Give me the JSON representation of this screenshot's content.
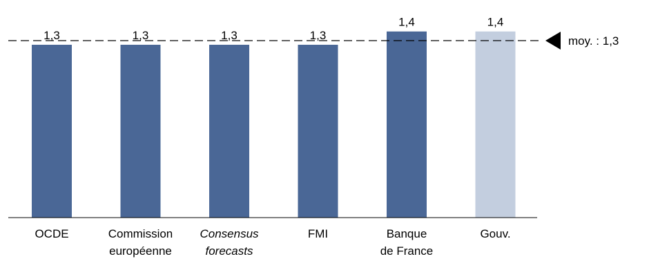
{
  "chart_data": {
    "type": "bar",
    "title": "",
    "xlabel": "",
    "ylabel": "",
    "ylim": [
      0,
      1.5
    ],
    "categories": [
      {
        "lines": [
          "OCDE"
        ],
        "italic": false
      },
      {
        "lines": [
          "Commission",
          "européenne"
        ],
        "italic": false
      },
      {
        "lines": [
          "Consensus",
          "forecasts"
        ],
        "italic": true
      },
      {
        "lines": [
          "FMI"
        ],
        "italic": false
      },
      {
        "lines": [
          "Banque",
          "de France"
        ],
        "italic": false
      },
      {
        "lines": [
          "Gouv."
        ],
        "italic": false
      }
    ],
    "values": [
      1.3,
      1.3,
      1.3,
      1.3,
      1.4,
      1.4
    ],
    "value_labels": [
      "1,3",
      "1,3",
      "1,3",
      "1,3",
      "1,4",
      "1,4"
    ],
    "bar_colors": [
      "#4a6796",
      "#4a6796",
      "#4a6796",
      "#4a6796",
      "#4a6796",
      "#c3cedf"
    ],
    "average": {
      "value": 1.3,
      "label": "moy. : 1,3",
      "line_style": "dashed"
    },
    "grid": false,
    "legend": "none"
  }
}
